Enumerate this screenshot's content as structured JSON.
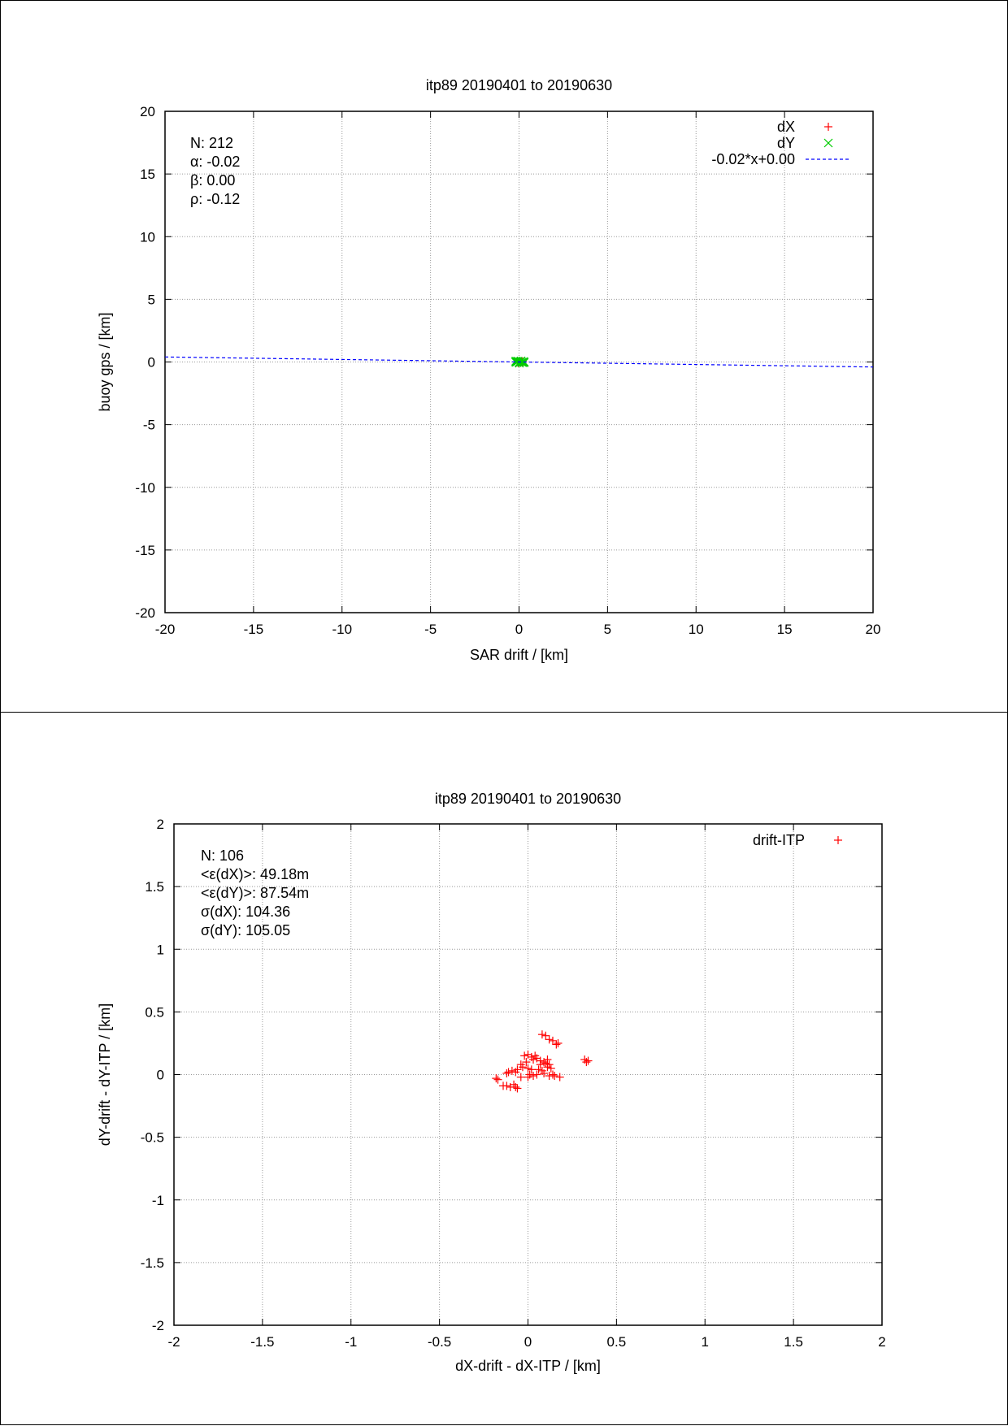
{
  "chart_data": [
    {
      "type": "scatter",
      "title": "itp89 20190401 to 20190630",
      "xlabel": "SAR drift / [km]",
      "ylabel": "buoy gps / [km]",
      "xlim": [
        -20,
        20
      ],
      "ylim": [
        -20,
        20
      ],
      "xticks": [
        -20,
        -15,
        -10,
        -5,
        0,
        5,
        10,
        15,
        20
      ],
      "yticks": [
        -20,
        -15,
        -10,
        -5,
        0,
        5,
        10,
        15,
        20
      ],
      "xtick_labels": [
        "-20",
        "-15",
        "-10",
        "-5",
        "0",
        "5",
        "10",
        "15",
        "20"
      ],
      "ytick_labels": [
        "-20",
        "-15",
        "-10",
        "-5",
        "0",
        "5",
        "10",
        "15",
        "20"
      ],
      "grid": true,
      "legend_position": "top-right",
      "stats": [
        "N: 212",
        "α: -0.02",
        "β: 0.00",
        "ρ: -0.12"
      ],
      "series": [
        {
          "name": "dX",
          "marker": "+",
          "color": "#ff0000",
          "points": [
            [
              -0.1,
              0.0
            ],
            [
              0.0,
              0.05
            ],
            [
              0.1,
              -0.05
            ],
            [
              0.2,
              0.02
            ],
            [
              -0.05,
              -0.08
            ],
            [
              0.15,
              0.06
            ]
          ]
        },
        {
          "name": "dY",
          "marker": "x",
          "color": "#00cc00",
          "points": [
            [
              -0.2,
              0.0
            ],
            [
              -0.1,
              0.05
            ],
            [
              0.0,
              -0.05
            ],
            [
              0.1,
              0.05
            ],
            [
              0.2,
              -0.05
            ],
            [
              0.3,
              0.0
            ],
            [
              -0.15,
              -0.03
            ],
            [
              0.05,
              0.02
            ],
            [
              0.25,
              0.04
            ],
            [
              0.15,
              -0.02
            ],
            [
              -0.05,
              0.07
            ],
            [
              0.12,
              0.09
            ],
            [
              0.02,
              -0.09
            ],
            [
              0.28,
              -0.06
            ],
            [
              -0.18,
              0.08
            ]
          ]
        },
        {
          "name": "-0.02*x+0.00",
          "style": "dashed-line",
          "color": "#0000ff",
          "slope": -0.02,
          "intercept": 0.0
        }
      ]
    },
    {
      "type": "scatter",
      "title": "itp89 20190401 to 20190630",
      "xlabel": "dX-drift - dX-ITP / [km]",
      "ylabel": "dY-drift - dY-ITP / [km]",
      "xlim": [
        -2,
        2
      ],
      "ylim": [
        -2,
        2
      ],
      "xticks": [
        -2,
        -1.5,
        -1,
        -0.5,
        0,
        0.5,
        1,
        1.5,
        2
      ],
      "yticks": [
        -2,
        -1.5,
        -1,
        -0.5,
        0,
        0.5,
        1,
        1.5,
        2
      ],
      "xtick_labels": [
        "-2",
        "-1.5",
        "-1",
        "-0.5",
        "0",
        "0.5",
        "1",
        "1.5",
        "2"
      ],
      "ytick_labels": [
        "-2",
        "-1.5",
        "-1",
        "-0.5",
        "0",
        "0.5",
        "1",
        "1.5",
        "2"
      ],
      "grid": true,
      "legend_position": "top-right",
      "stats": [
        "N: 106",
        "<ε(dX)>:  49.18m",
        "<ε(dY)>: 87.54m",
        "σ(dX):  104.36",
        "σ(dY):  105.05"
      ],
      "series": [
        {
          "name": "drift-ITP",
          "marker": "+",
          "color": "#ff0000",
          "points": [
            [
              0.08,
              0.32
            ],
            [
              0.1,
              0.31
            ],
            [
              0.12,
              0.28
            ],
            [
              0.14,
              0.27
            ],
            [
              0.17,
              0.25
            ],
            [
              0.16,
              0.24
            ],
            [
              0.32,
              0.12
            ],
            [
              0.34,
              0.11
            ],
            [
              0.33,
              0.1
            ],
            [
              0.0,
              0.16
            ],
            [
              -0.02,
              0.15
            ],
            [
              0.02,
              0.14
            ],
            [
              0.04,
              0.15
            ],
            [
              0.05,
              0.13
            ],
            [
              0.03,
              0.12
            ],
            [
              0.07,
              0.11
            ],
            [
              0.09,
              0.1
            ],
            [
              0.1,
              0.09
            ],
            [
              0.12,
              0.08
            ],
            [
              0.11,
              0.06
            ],
            [
              0.13,
              0.05
            ],
            [
              -0.04,
              0.08
            ],
            [
              -0.03,
              0.06
            ],
            [
              0.0,
              0.05
            ],
            [
              0.02,
              0.04
            ],
            [
              0.06,
              0.04
            ],
            [
              0.08,
              0.03
            ],
            [
              -0.06,
              0.04
            ],
            [
              -0.09,
              0.03
            ],
            [
              -0.11,
              0.02
            ],
            [
              -0.07,
              0.02
            ],
            [
              -0.12,
              0.01
            ],
            [
              0.01,
              0.0
            ],
            [
              0.03,
              -0.01
            ],
            [
              0.0,
              -0.02
            ],
            [
              0.05,
              0.0
            ],
            [
              0.09,
              0.01
            ],
            [
              0.14,
              0.0
            ],
            [
              0.15,
              -0.01
            ],
            [
              0.18,
              -0.02
            ],
            [
              0.12,
              -0.01
            ],
            [
              -0.18,
              -0.03
            ],
            [
              -0.17,
              -0.04
            ],
            [
              -0.14,
              -0.09
            ],
            [
              -0.12,
              -0.09
            ],
            [
              -0.1,
              -0.1
            ],
            [
              -0.07,
              -0.1
            ],
            [
              -0.06,
              -0.11
            ],
            [
              -0.08,
              -0.08
            ],
            [
              -0.04,
              -0.02
            ],
            [
              0.07,
              0.08
            ],
            [
              0.11,
              0.12
            ],
            [
              -0.01,
              0.1
            ]
          ]
        }
      ]
    }
  ]
}
